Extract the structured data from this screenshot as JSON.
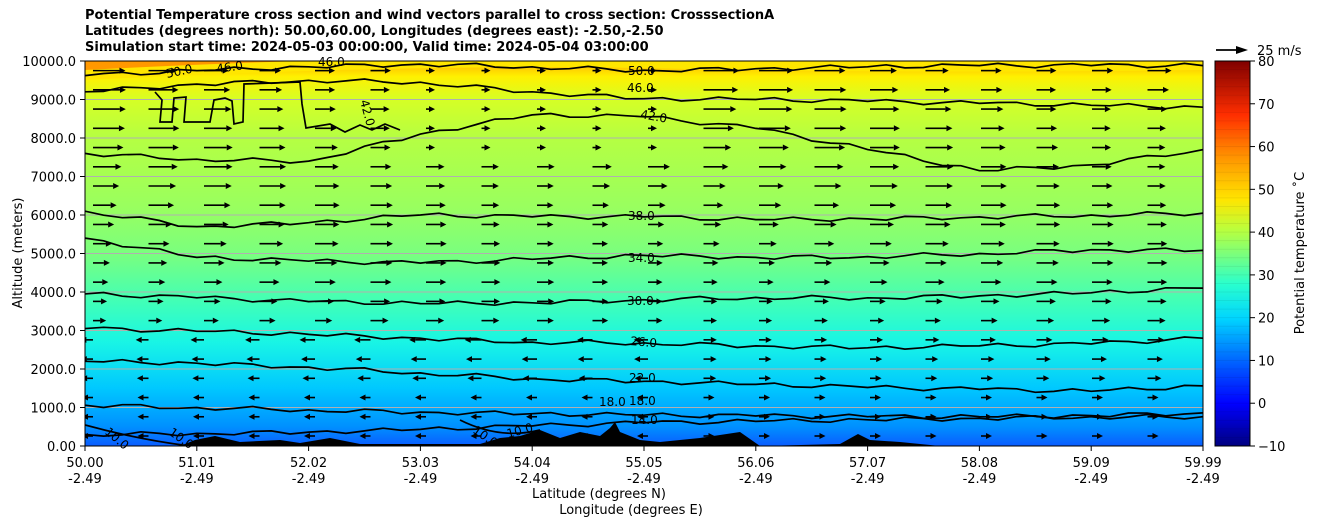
{
  "chart_data": {
    "type": "contourf",
    "title_lines": [
      "Potential Temperature cross section and wind vectors parallel to cross section: CrosssectionA",
      "Latitudes (degrees north): 50.00,60.00, Longitudes (degrees east): -2.50,-2.50",
      "Simulation start time: 2024-05-03 00:00:00, Valid time: 2024-05-04 03:00:00"
    ],
    "xlabel_lat": "Latitude (degrees N)",
    "xlabel_lon": "Longitude (degrees E)",
    "ylabel": "Altitude (meters)",
    "colorbar_label": "Potential temperature $^\\circ$C",
    "colorbar_label_display": "Potential temperature ˚C",
    "quiver_key": "25 m/s",
    "x_ticks_lat": [
      "50.00",
      "51.01",
      "52.02",
      "53.03",
      "54.04",
      "55.05",
      "56.06",
      "57.07",
      "58.08",
      "59.09",
      "59.99"
    ],
    "x_ticks_lon": [
      "-2.49",
      "-2.49",
      "-2.49",
      "-2.49",
      "-2.49",
      "-2.49",
      "-2.49",
      "-2.49",
      "-2.49",
      "-2.49",
      "-2.49"
    ],
    "y_ticks": [
      "0.00",
      "1000.0",
      "2000.0",
      "3000.0",
      "4000.0",
      "5000.0",
      "6000.0",
      "7000.0",
      "8000.0",
      "9000.0",
      "10000.0"
    ],
    "ylim": [
      0,
      10000
    ],
    "xlim": [
      50.0,
      59.99
    ],
    "colorbar_ticks": [
      "−10",
      "0",
      "10",
      "20",
      "30",
      "40",
      "50",
      "60",
      "70",
      "80"
    ],
    "colorbar_range": [
      -10,
      80
    ],
    "contour_labels": [
      "10.0",
      "10.0",
      "10.0",
      "10.0",
      "14.0",
      "18.0",
      "18.0",
      "22.0",
      "26.0",
      "30.0",
      "34.0",
      "38.0",
      "42.0",
      "42.0",
      "46.0",
      "46.0",
      "50.0",
      "50.0",
      "46.0"
    ],
    "isentropes": [
      {
        "theta": 14,
        "z": [
          300,
          330,
          360,
          430,
          520,
          600,
          640,
          680,
          720,
          760,
          760
        ]
      },
      {
        "theta": 18,
        "z": [
          1060,
          1000,
          940,
          880,
          840,
          800,
          780,
          760,
          760,
          790,
          860
        ]
      },
      {
        "theta": 22,
        "z": [
          2200,
          2150,
          2050,
          1900,
          1750,
          1680,
          1600,
          1520,
          1470,
          1420,
          1560
        ]
      },
      {
        "theta": 26,
        "z": [
          3050,
          2980,
          2900,
          2800,
          2700,
          2680,
          2600,
          2550,
          2600,
          2650,
          2800
        ]
      },
      {
        "theta": 30,
        "z": [
          3950,
          3850,
          3750,
          3700,
          3720,
          3800,
          3860,
          3850,
          3900,
          3980,
          4100
        ]
      },
      {
        "theta": 34,
        "z": [
          5400,
          4900,
          4800,
          4750,
          4850,
          4950,
          4900,
          4920,
          5000,
          5100,
          5080
        ]
      },
      {
        "theta": 38,
        "z": [
          6100,
          5700,
          5800,
          6000,
          5950,
          5950,
          5880,
          5900,
          5950,
          6000,
          6050
        ]
      },
      {
        "theta": 42,
        "z": [
          7600,
          7450,
          7400,
          8100,
          8600,
          8550,
          8250,
          7700,
          7150,
          7300,
          7700
        ]
      },
      {
        "theta": 46,
        "z": [
          9200,
          9400,
          9500,
          9450,
          9200,
          9020,
          9000,
          8950,
          8900,
          8850,
          8800
        ]
      },
      {
        "theta": 50,
        "z": [
          9620,
          9750,
          9850,
          9920,
          9850,
          9760,
          9800,
          9850,
          9880,
          9880,
          9880
        ]
      }
    ]
  }
}
